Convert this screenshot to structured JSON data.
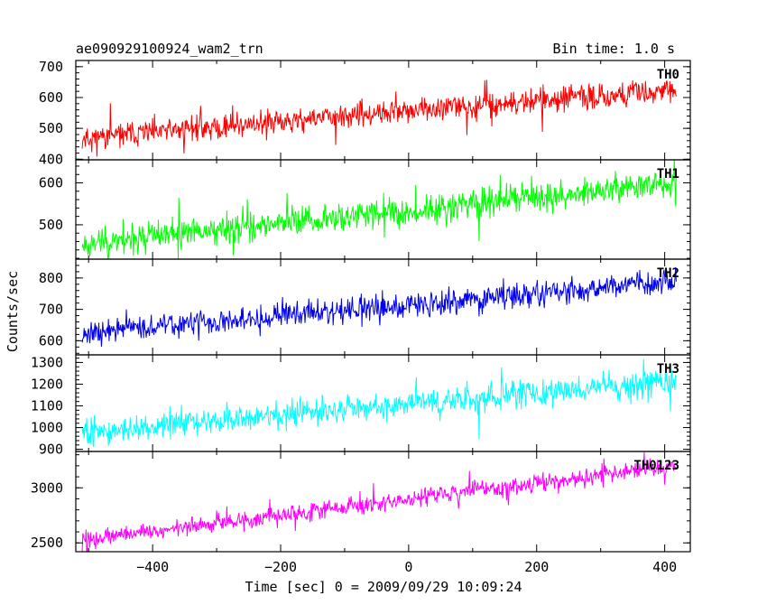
{
  "chart_data": {
    "type": "line",
    "title": "ae090929100924_wam2_trn",
    "subtitle": "Bin time: 1.0 s",
    "xlabel": "Time [sec] 0 = 2009/09/29 10:09:24",
    "ylabel": "Counts/sec",
    "xlim": [
      -520,
      440
    ],
    "x_ticks": [
      -400,
      -200,
      0,
      200,
      400
    ],
    "x_tick_labels": [
      "−400",
      "−200",
      "0",
      "200",
      "400"
    ],
    "data_x_range": [
      -510,
      418
    ],
    "bin_time_s": 1.0,
    "grid": false,
    "panels": [
      {
        "name": "TH0",
        "color": "#ff0000",
        "ylim": [
          398,
          720
        ],
        "y_ticks": [
          400,
          500,
          600,
          700
        ],
        "y_tick_labels": [
          "400",
          "500",
          "600",
          "700"
        ],
        "trend_start": 470,
        "trend_end": 625,
        "noise": 28,
        "spike": 48,
        "seed": 11
      },
      {
        "name": "TH1",
        "color": "#00ff00",
        "ylim": [
          418,
          655
        ],
        "y_ticks": [
          500,
          600
        ],
        "y_tick_labels": [
          "500",
          "600"
        ],
        "trend_start": 455,
        "trend_end": 600,
        "noise": 24,
        "spike": 40,
        "seed": 23
      },
      {
        "name": "TH2",
        "color": "#0000ee",
        "ylim": [
          555,
          860
        ],
        "y_ticks": [
          600,
          700,
          800
        ],
        "y_tick_labels": [
          "600",
          "700",
          "800"
        ],
        "trend_start": 625,
        "trend_end": 790,
        "noise": 28,
        "spike": 45,
        "seed": 37
      },
      {
        "name": "TH3",
        "color": "#00ffff",
        "ylim": [
          890,
          1335
        ],
        "y_ticks": [
          900,
          1000,
          1100,
          1200,
          1300
        ],
        "y_tick_labels": [
          "900",
          "1000",
          "1100",
          "1200",
          "1300"
        ],
        "trend_start": 975,
        "trend_end": 1215,
        "noise": 42,
        "spike": 70,
        "seed": 51
      },
      {
        "name": "TH0123",
        "color": "#ff00ff",
        "ylim": [
          2420,
          3330
        ],
        "y_ticks": [
          2500,
          3000
        ],
        "y_tick_labels": [
          "2500",
          "3000"
        ],
        "trend_start": 2530,
        "trend_end": 3200,
        "noise": 55,
        "spike": 95,
        "seed": 73
      }
    ]
  }
}
